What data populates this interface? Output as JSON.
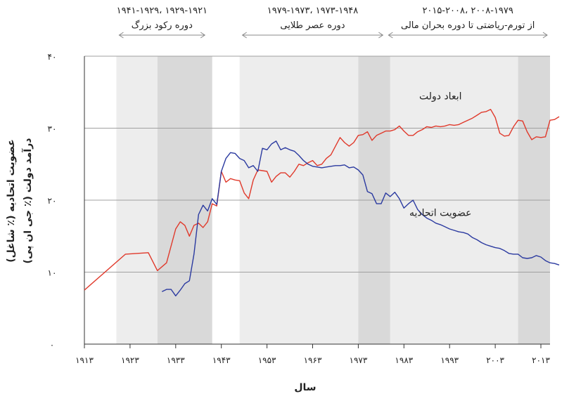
{
  "chart_data": {
    "type": "line",
    "xlabel": "سال",
    "ylabel_lines": [
      "عضویت اتحادیه (٪ شاغل)",
      "درآمد دولت (٪ جی ان پی)"
    ],
    "xlim": [
      1913,
      2015
    ],
    "ylim": [
      0,
      40
    ],
    "x_ticks": [
      1913,
      1923,
      1933,
      1943,
      1953,
      1963,
      1973,
      1983,
      1993,
      2003,
      2013
    ],
    "x_tick_labels": [
      "۱۹۱۳",
      "۱۹۲۳",
      "۱۹۳۳",
      "۱۹۴۳",
      "۱۹۵۳",
      "۱۹۶۳",
      "۱۹۷۳",
      "۱۹۸۳",
      "۱۹۹۳",
      "۲۰۰۳",
      "۲۰۱۳"
    ],
    "y_ticks": [
      0,
      10,
      20,
      30,
      40
    ],
    "y_tick_labels": [
      "۰",
      "۱۰",
      "۲۰",
      "۳۰",
      "۴۰"
    ],
    "grid": "horizontal",
    "periods": [
      {
        "years": "۱۹۴۱-۱۹۲۹، ۱۹۲۹-۱۹۲۱",
        "label": "دوره رکود بزرگ",
        "start": 1920,
        "end": 1940
      },
      {
        "years": "۱۹۷۹-۱۹۷۳، ۱۹۷۳-۱۹۴۸",
        "label": "دوره عصر طلایی",
        "start": 1947,
        "end": 1979
      },
      {
        "years": "۲۰۱۵-۲۰۰۸، ۲۰۰۸-۱۹۷۹",
        "label": "از تورم-ریاضتی تا دوره بحران مالی",
        "start": 1979,
        "end": 2015
      }
    ],
    "shaded_bands": [
      {
        "start": 1920,
        "end": 1929,
        "tone": "light"
      },
      {
        "start": 1929,
        "end": 1941,
        "tone": "dark"
      },
      {
        "start": 1947,
        "end": 1973,
        "tone": "light"
      },
      {
        "start": 1973,
        "end": 1980,
        "tone": "dark"
      },
      {
        "start": 1980,
        "end": 2008,
        "tone": "light"
      },
      {
        "start": 2008,
        "end": 2015,
        "tone": "dark"
      }
    ],
    "series": [
      {
        "name": "ابعاد دولت",
        "color": "#e0392b",
        "points": [
          [
            1913,
            7.5
          ],
          [
            1922,
            12.5
          ],
          [
            1927,
            12.7
          ],
          [
            1929,
            10.2
          ],
          [
            1931,
            11.3
          ],
          [
            1933,
            16.0
          ],
          [
            1934,
            17.0
          ],
          [
            1935,
            16.5
          ],
          [
            1936,
            15.0
          ],
          [
            1937,
            16.5
          ],
          [
            1938,
            16.8
          ],
          [
            1939,
            16.2
          ],
          [
            1940,
            17.0
          ],
          [
            1941,
            19.5
          ],
          [
            1942,
            19.2
          ],
          [
            1943,
            24.0
          ],
          [
            1944,
            22.5
          ],
          [
            1945,
            23.0
          ],
          [
            1946,
            22.8
          ],
          [
            1947,
            22.7
          ],
          [
            1948,
            21.0
          ],
          [
            1949,
            20.2
          ],
          [
            1950,
            22.8
          ],
          [
            1951,
            24.2
          ],
          [
            1952,
            24.1
          ],
          [
            1953,
            24.0
          ],
          [
            1954,
            22.5
          ],
          [
            1955,
            23.3
          ],
          [
            1956,
            23.8
          ],
          [
            1957,
            23.8
          ],
          [
            1958,
            23.2
          ],
          [
            1959,
            24.0
          ],
          [
            1960,
            25.0
          ],
          [
            1961,
            24.8
          ],
          [
            1962,
            25.2
          ],
          [
            1963,
            25.5
          ],
          [
            1964,
            24.8
          ],
          [
            1965,
            25.0
          ],
          [
            1966,
            25.8
          ],
          [
            1967,
            26.3
          ],
          [
            1968,
            27.5
          ],
          [
            1969,
            28.7
          ],
          [
            1970,
            28.0
          ],
          [
            1971,
            27.5
          ],
          [
            1972,
            28.0
          ],
          [
            1973,
            29.0
          ],
          [
            1974,
            29.1
          ],
          [
            1975,
            29.5
          ],
          [
            1976,
            28.3
          ],
          [
            1977,
            29.0
          ],
          [
            1978,
            29.3
          ],
          [
            1979,
            29.6
          ],
          [
            1980,
            29.6
          ],
          [
            1981,
            29.8
          ],
          [
            1982,
            30.3
          ],
          [
            1983,
            29.6
          ],
          [
            1984,
            29.0
          ],
          [
            1985,
            29.0
          ],
          [
            1986,
            29.5
          ],
          [
            1987,
            29.8
          ],
          [
            1988,
            30.2
          ],
          [
            1989,
            30.1
          ],
          [
            1990,
            30.3
          ],
          [
            1991,
            30.2
          ],
          [
            1992,
            30.3
          ],
          [
            1993,
            30.5
          ],
          [
            1994,
            30.4
          ],
          [
            1995,
            30.5
          ],
          [
            1996,
            30.8
          ],
          [
            1997,
            31.1
          ],
          [
            1998,
            31.4
          ],
          [
            1999,
            31.8
          ],
          [
            2000,
            32.2
          ],
          [
            2001,
            32.3
          ],
          [
            2002,
            32.6
          ],
          [
            2003,
            31.5
          ],
          [
            2004,
            29.3
          ],
          [
            2005,
            28.9
          ],
          [
            2006,
            29.0
          ],
          [
            2007,
            30.2
          ],
          [
            2008,
            31.1
          ],
          [
            2009,
            31.0
          ],
          [
            2010,
            29.5
          ],
          [
            2011,
            28.4
          ],
          [
            2012,
            28.8
          ],
          [
            2013,
            28.7
          ],
          [
            2014,
            28.8
          ],
          [
            2015,
            31.1
          ],
          [
            2016,
            31.2
          ],
          [
            2017,
            31.6
          ]
        ]
      },
      {
        "name": "عضویت اتحادیه",
        "color": "#2b3aa0",
        "points": [
          [
            1930,
            7.3
          ],
          [
            1931,
            7.6
          ],
          [
            1932,
            7.6
          ],
          [
            1933,
            6.7
          ],
          [
            1934,
            7.5
          ],
          [
            1935,
            8.4
          ],
          [
            1936,
            8.8
          ],
          [
            1937,
            12.5
          ],
          [
            1938,
            18.0
          ],
          [
            1939,
            19.3
          ],
          [
            1940,
            18.5
          ],
          [
            1941,
            20.2
          ],
          [
            1942,
            19.4
          ],
          [
            1943,
            24.0
          ],
          [
            1944,
            25.8
          ],
          [
            1945,
            26.6
          ],
          [
            1946,
            26.5
          ],
          [
            1947,
            25.8
          ],
          [
            1948,
            25.5
          ],
          [
            1949,
            24.5
          ],
          [
            1950,
            24.8
          ],
          [
            1951,
            24.0
          ],
          [
            1952,
            27.2
          ],
          [
            1953,
            27.0
          ],
          [
            1954,
            27.8
          ],
          [
            1955,
            28.2
          ],
          [
            1956,
            27.0
          ],
          [
            1957,
            27.3
          ],
          [
            1958,
            27.0
          ],
          [
            1959,
            26.8
          ],
          [
            1960,
            26.2
          ],
          [
            1961,
            25.5
          ],
          [
            1962,
            25.0
          ],
          [
            1963,
            24.7
          ],
          [
            1964,
            24.6
          ],
          [
            1965,
            24.5
          ],
          [
            1966,
            24.6
          ],
          [
            1967,
            24.7
          ],
          [
            1968,
            24.8
          ],
          [
            1969,
            24.8
          ],
          [
            1970,
            24.9
          ],
          [
            1971,
            24.5
          ],
          [
            1972,
            24.6
          ],
          [
            1973,
            24.2
          ],
          [
            1974,
            23.5
          ],
          [
            1975,
            21.2
          ],
          [
            1976,
            20.9
          ],
          [
            1977,
            19.5
          ],
          [
            1978,
            19.5
          ],
          [
            1979,
            21.0
          ],
          [
            1980,
            20.5
          ],
          [
            1981,
            21.1
          ],
          [
            1982,
            20.2
          ],
          [
            1983,
            18.9
          ],
          [
            1984,
            19.5
          ],
          [
            1985,
            20.0
          ],
          [
            1986,
            18.7
          ],
          [
            1987,
            18.0
          ],
          [
            1988,
            17.5
          ],
          [
            1989,
            17.2
          ],
          [
            1990,
            16.8
          ],
          [
            1991,
            16.6
          ],
          [
            1992,
            16.3
          ],
          [
            1993,
            16.0
          ],
          [
            1994,
            15.8
          ],
          [
            1995,
            15.6
          ],
          [
            1996,
            15.5
          ],
          [
            1997,
            15.3
          ],
          [
            1998,
            14.8
          ],
          [
            1999,
            14.5
          ],
          [
            2000,
            14.1
          ],
          [
            2001,
            13.8
          ],
          [
            2002,
            13.6
          ],
          [
            2003,
            13.4
          ],
          [
            2004,
            13.3
          ],
          [
            2005,
            13.0
          ],
          [
            2006,
            12.6
          ],
          [
            2007,
            12.5
          ],
          [
            2008,
            12.5
          ],
          [
            2009,
            12.0
          ],
          [
            2010,
            11.9
          ],
          [
            2011,
            12.0
          ],
          [
            2012,
            12.3
          ],
          [
            2013,
            12.1
          ],
          [
            2014,
            11.6
          ],
          [
            2015,
            11.3
          ],
          [
            2016,
            11.2
          ],
          [
            2017,
            11.0
          ]
        ]
      }
    ]
  }
}
